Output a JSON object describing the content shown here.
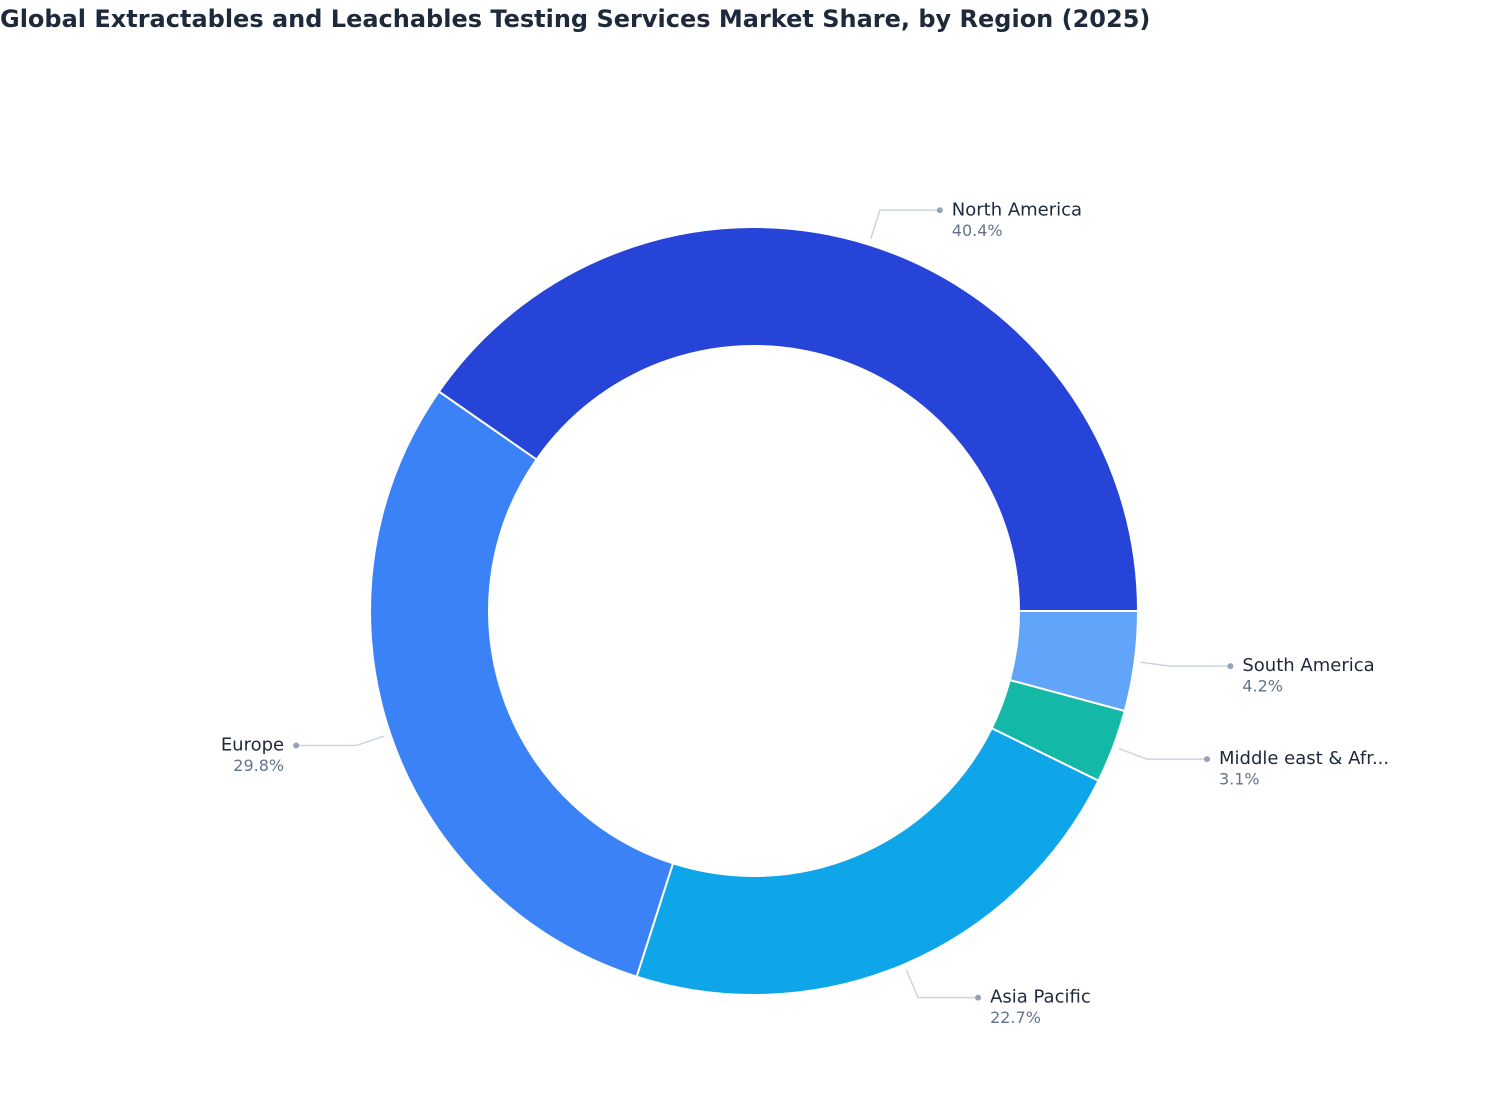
{
  "chart_data": {
    "type": "donut",
    "title": "Global Extractables and Leachables Testing Services Market Share, by Region (2025)",
    "categories": [
      "North America",
      "Europe",
      "Asia Pacific",
      "Middle east & Afr...",
      "South America"
    ],
    "values": [
      40.4,
      29.8,
      22.7,
      3.1,
      4.2
    ],
    "value_labels": [
      "40.4%",
      "29.8%",
      "22.7%",
      "3.1%",
      "4.2%"
    ],
    "colors": [
      "#2744d9",
      "#3b82f6",
      "#0ea5e9",
      "#14b8a6",
      "#60a5fa"
    ]
  }
}
